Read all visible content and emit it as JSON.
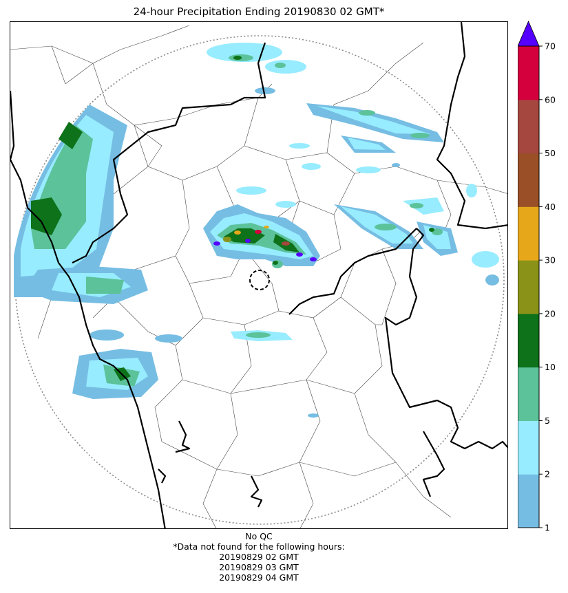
{
  "title": "24-hour Precipitation Ending 20190830 02 GMT*",
  "colorbar": {
    "levels": [
      1,
      2,
      5,
      10,
      20,
      30,
      40,
      50,
      60,
      70
    ],
    "colors": [
      "#76bde3",
      "#97ecff",
      "#5bc29a",
      "#0d7219",
      "#8a9317",
      "#e6a81a",
      "#9a4f26",
      "#a6473f",
      "#d4003e"
    ],
    "overflow_color": "#5500ff",
    "tick_labels": [
      "1",
      "2",
      "5",
      "10",
      "20",
      "30",
      "40",
      "50",
      "60",
      "70"
    ]
  },
  "footer": {
    "qc_note": "No QC",
    "missing_note": "*Data not found for the following hours:",
    "missing_hours": [
      "20190829 02 GMT",
      "20190829 03 GMT",
      "20190829 04 GMT"
    ]
  }
}
